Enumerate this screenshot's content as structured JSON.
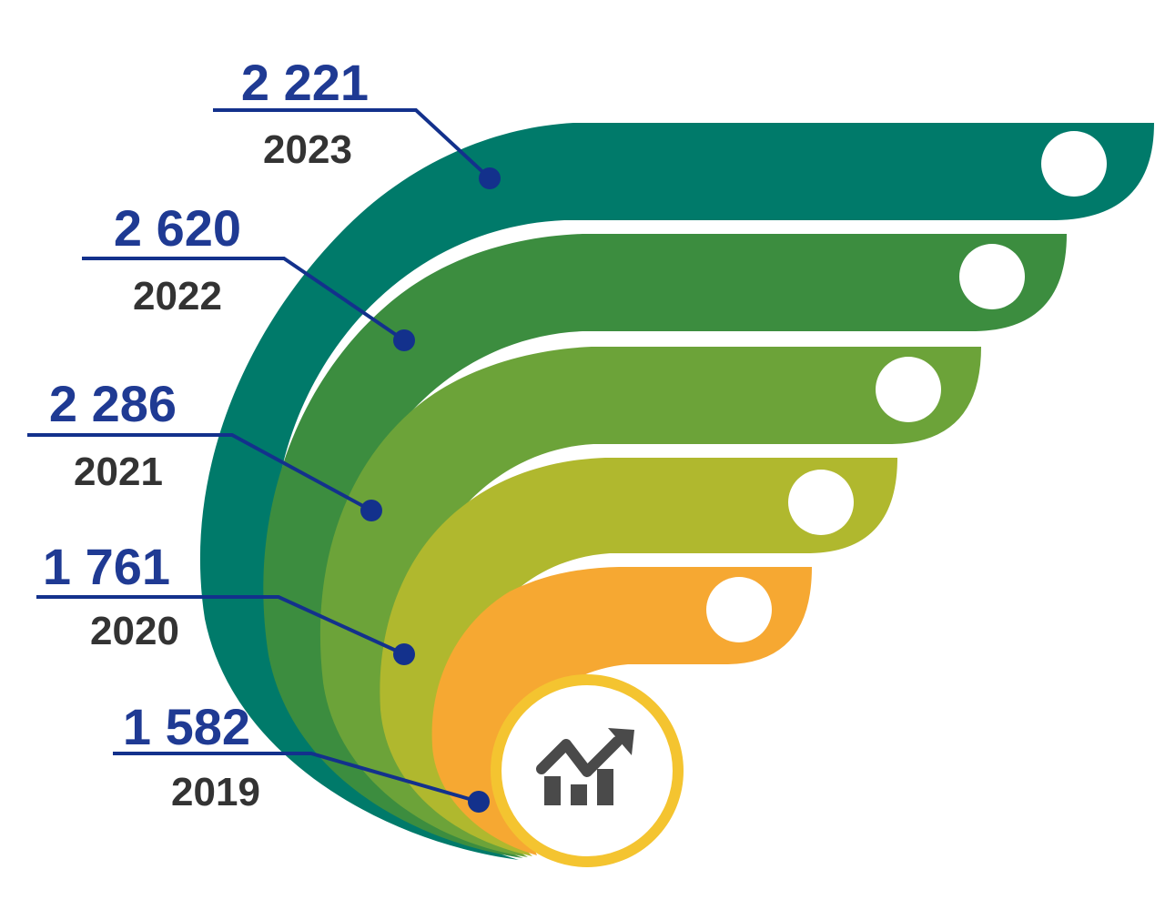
{
  "colors": {
    "value_text": "#1f3a93",
    "year_text": "#333333",
    "leader": "#13318c",
    "icon": "#4a4a4a",
    "icon_ring": "#f4c430"
  },
  "items": [
    {
      "year": "2023",
      "value": "2 221",
      "color": "#007a6a"
    },
    {
      "year": "2022",
      "value": "2 620",
      "color": "#3c8d3f"
    },
    {
      "year": "2021",
      "value": "2 286",
      "color": "#6ca339"
    },
    {
      "year": "2020",
      "value": "1 761",
      "color": "#b0b82e"
    },
    {
      "year": "2019",
      "value": "1 582",
      "color": "#f6a832"
    }
  ],
  "center_icon": "growth-chart-icon"
}
